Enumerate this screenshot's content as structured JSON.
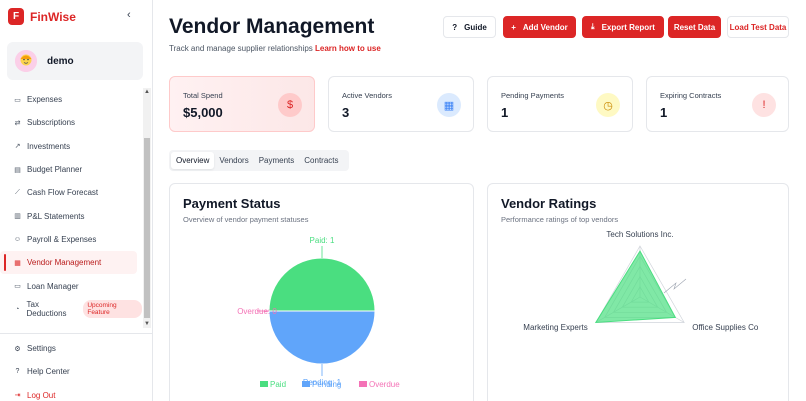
{
  "app": {
    "name": "FinWise",
    "logo_letter": "F"
  },
  "user": {
    "name": "demo"
  },
  "sidebar": {
    "items": [
      {
        "label": "Expenses",
        "icon": "wallet-icon"
      },
      {
        "label": "Subscriptions",
        "icon": "repeat-icon"
      },
      {
        "label": "Investments",
        "icon": "trending-up-icon"
      },
      {
        "label": "Budget Planner",
        "icon": "clipboard-icon"
      },
      {
        "label": "Cash Flow Forecast",
        "icon": "line-chart-icon"
      },
      {
        "label": "P&L Statements",
        "icon": "bar-chart-icon"
      },
      {
        "label": "Payroll & Expenses",
        "icon": "users-icon"
      },
      {
        "label": "Vendor Management",
        "icon": "building-icon",
        "active": true
      },
      {
        "label": "Loan Manager",
        "icon": "card-icon"
      },
      {
        "label": "Tax Deductions",
        "icon": "receipt-icon",
        "badge": "Upcoming Feature"
      }
    ],
    "footer": [
      {
        "label": "Settings",
        "icon": "gear-icon"
      },
      {
        "label": "Help Center",
        "icon": "help-icon"
      },
      {
        "label": "Log Out",
        "icon": "logout-icon"
      }
    ]
  },
  "header": {
    "title": "Vendor Management",
    "subtitle": "Track and manage supplier relationships",
    "learn_link": "Learn how to use",
    "buttons": {
      "guide": "Guide",
      "add_vendor": "Add Vendor",
      "export_report": "Export Report",
      "reset_data": "Reset Data",
      "load_test_data": "Load Test Data"
    }
  },
  "stats": [
    {
      "label": "Total Spend",
      "value": "$5,000",
      "icon": "dollar-icon",
      "color": "#dc2626"
    },
    {
      "label": "Active Vendors",
      "value": "3",
      "icon": "building-icon",
      "color": "#3b82f6"
    },
    {
      "label": "Pending Payments",
      "value": "1",
      "icon": "clock-icon",
      "color": "#ca8a04"
    },
    {
      "label": "Expiring Contracts",
      "value": "1",
      "icon": "file-icon",
      "color": "#dc2626"
    }
  ],
  "tabs": [
    "Overview",
    "Vendors",
    "Payments",
    "Contracts"
  ],
  "active_tab": "Overview",
  "payment_card": {
    "title": "Payment Status",
    "subtitle": "Overview of vendor payment statuses"
  },
  "ratings_card": {
    "title": "Vendor Ratings",
    "subtitle": "Performance ratings of top vendors"
  },
  "chart_data": [
    {
      "type": "pie",
      "title": "Payment Status",
      "categories": [
        "Paid",
        "Pending",
        "Overdue"
      ],
      "values": [
        1,
        1,
        0
      ],
      "slice_labels": [
        "Paid: 1",
        "Pending: 1",
        "Overdue: 0"
      ],
      "colors": [
        "#4ade80",
        "#60a5fa",
        "#f472b6"
      ],
      "legend": "bottom"
    },
    {
      "type": "radar",
      "title": "Vendor Ratings",
      "categories": [
        "Tech Solutions Inc.",
        "Office Supplies Co",
        "Marketing Experts"
      ],
      "values": [
        4.5,
        4.0,
        5.0
      ],
      "range": [
        0,
        5
      ],
      "colors": [
        "#4ade80"
      ]
    }
  ]
}
